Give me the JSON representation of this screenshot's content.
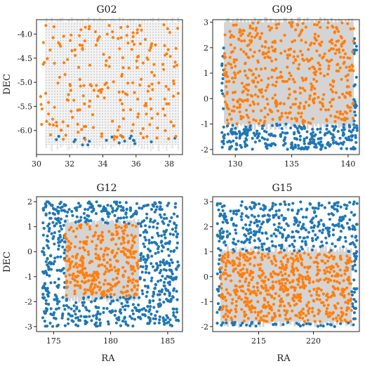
{
  "figure": {
    "colors": {
      "outer": "#1f77b4",
      "inner": "#ff7f0e",
      "coverage": "#d4d4d4",
      "frame": "#222222"
    }
  },
  "chart_data": [
    {
      "type": "scatter",
      "title": "G02",
      "xlabel": "",
      "ylabel": "DEC",
      "xlim": [
        30,
        38.8
      ],
      "ylim": [
        -6.5,
        -3.7
      ],
      "xticks": [
        "30",
        "32",
        "34",
        "36",
        "38"
      ],
      "yticks": [
        "-6.0",
        "-5.5",
        "-5.0",
        "-4.5",
        "-4.0"
      ],
      "coverage": {
        "style": "hatched-gray",
        "ra": [
          30.5,
          38.6
        ],
        "dec": [
          -6.3,
          -3.75
        ]
      },
      "series": [
        {
          "color": "#ff7f0e",
          "approx_points": 230,
          "ra": [
            30.2,
            38.6
          ],
          "dec": [
            -6.2,
            -3.8
          ]
        },
        {
          "color": "#1f77b4",
          "approx_points": 20,
          "ra": [
            30.2,
            38.6
          ],
          "dec": [
            -6.3,
            -6.1
          ]
        }
      ]
    },
    {
      "type": "scatter",
      "title": "G09",
      "xlabel": "",
      "ylabel": "",
      "xlim": [
        128,
        141
      ],
      "ylim": [
        -2.2,
        3.1
      ],
      "xticks": [
        "130",
        "135",
        "140"
      ],
      "yticks": [
        "-2",
        "-1",
        "0",
        "1",
        "2",
        "3"
      ],
      "coverage": {
        "style": "gray",
        "ra": [
          129.0,
          140.5
        ],
        "dec": [
          -1.0,
          3.0
        ]
      },
      "series": [
        {
          "color": "#ff7f0e",
          "approx_points": 520,
          "ra": [
            129.0,
            140.5
          ],
          "dec": [
            -1.0,
            3.0
          ]
        },
        {
          "color": "#1f77b4",
          "approx_points": 300,
          "ra": [
            128.8,
            140.8
          ],
          "dec": [
            -2.0,
            3.0
          ]
        }
      ]
    },
    {
      "type": "scatter",
      "title": "G12",
      "xlabel": "RA",
      "ylabel": "DEC",
      "xlim": [
        173.5,
        186.3
      ],
      "ylim": [
        -3.2,
        2.2
      ],
      "xticks": [
        "175",
        "180",
        "185"
      ],
      "yticks": [
        "-3",
        "-2",
        "-1",
        "0",
        "1",
        "2"
      ],
      "coverage": {
        "style": "gray",
        "ra": [
          176.0,
          182.5
        ],
        "dec": [
          -1.8,
          1.1
        ]
      },
      "series": [
        {
          "color": "#ff7f0e",
          "approx_points": 340,
          "ra": [
            176.0,
            182.5
          ],
          "dec": [
            -1.8,
            1.1
          ]
        },
        {
          "color": "#1f77b4",
          "approx_points": 720,
          "ra": [
            174.0,
            186.0
          ],
          "dec": [
            -3.0,
            2.0
          ]
        }
      ]
    },
    {
      "type": "scatter",
      "title": "G15",
      "xlabel": "RA",
      "ylabel": "",
      "xlim": [
        210.8,
        224.2
      ],
      "ylim": [
        -2.2,
        3.2
      ],
      "xticks": [
        "215",
        "220"
      ],
      "yticks": [
        "-2",
        "-1",
        "0",
        "1",
        "2",
        "3"
      ],
      "coverage": {
        "style": "gray",
        "ra": [
          211.5,
          223.5
        ],
        "dec": [
          -1.8,
          1.0
        ]
      },
      "series": [
        {
          "color": "#ff7f0e",
          "approx_points": 620,
          "ra": [
            211.5,
            223.5
          ],
          "dec": [
            -1.8,
            1.0
          ]
        },
        {
          "color": "#1f77b4",
          "approx_points": 470,
          "ra": [
            211.2,
            224.0
          ],
          "dec": [
            -2.0,
            3.0
          ]
        }
      ]
    }
  ]
}
